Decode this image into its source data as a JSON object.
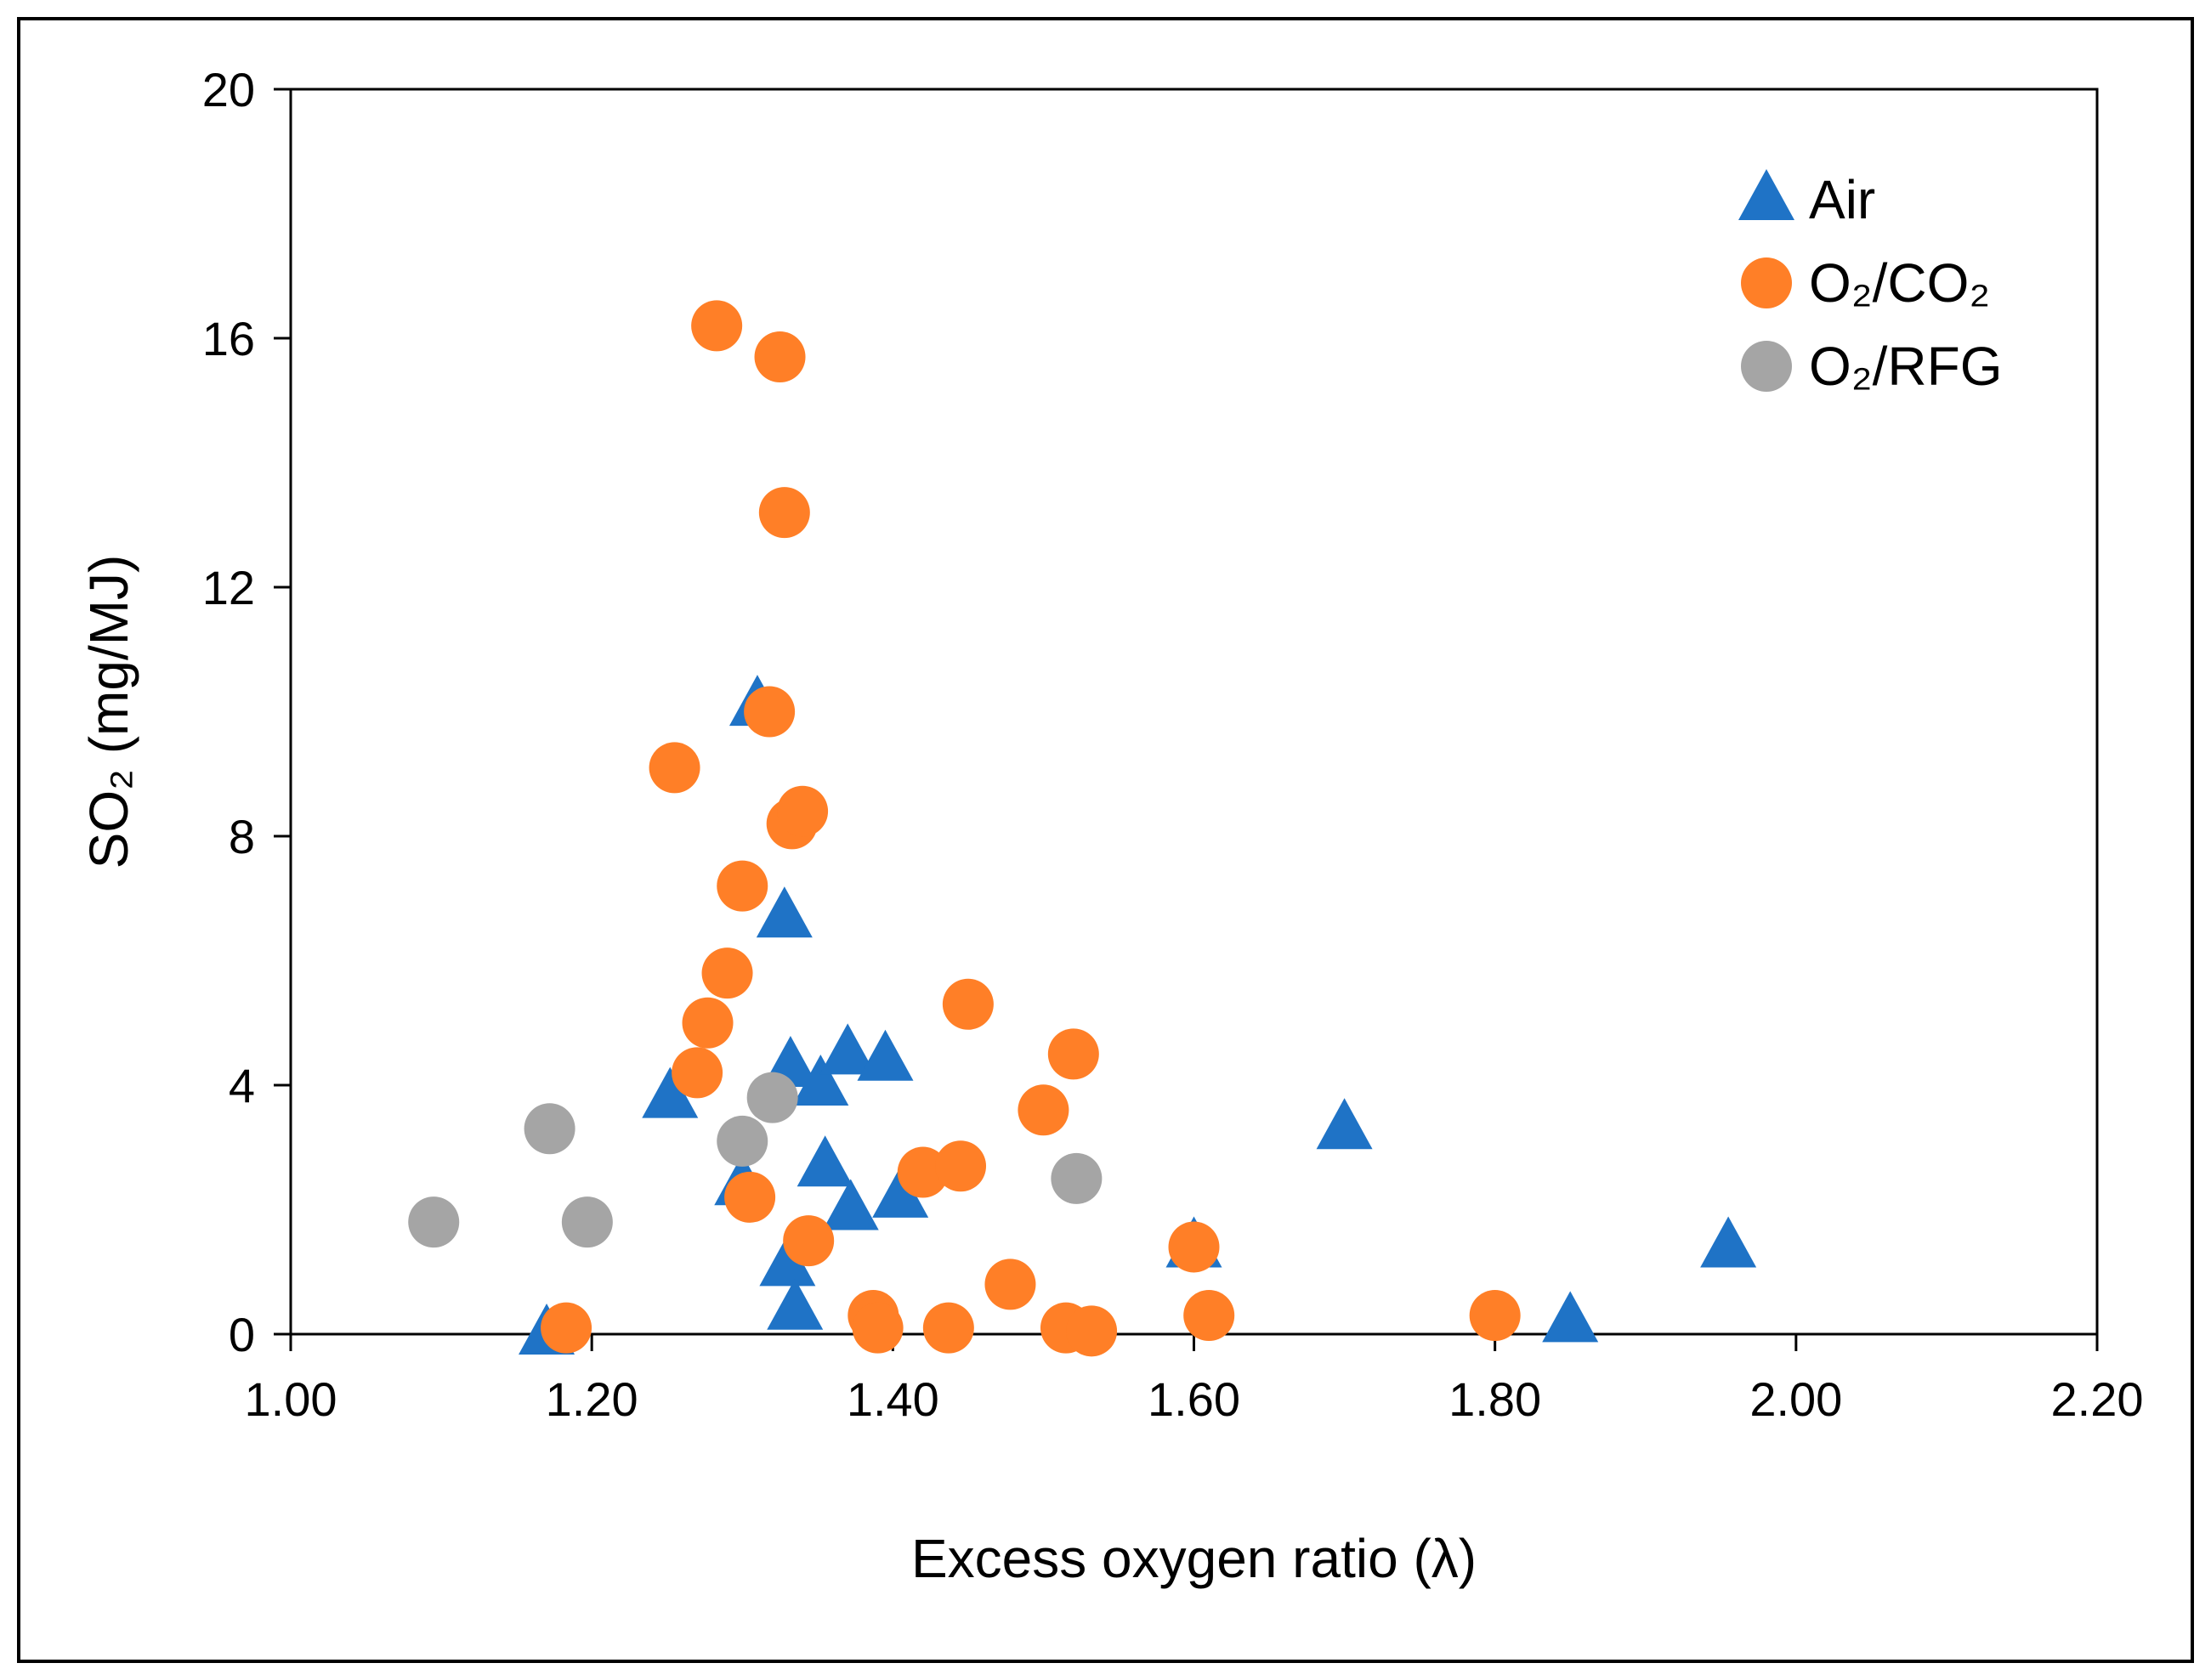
{
  "chart_data": {
    "type": "scatter",
    "title": "",
    "xlabel": "Excess oxygen ratio (λ)",
    "ylabel": "SO₂ (mg/MJ)",
    "xlim": [
      1.0,
      2.2
    ],
    "ylim": [
      0,
      20
    ],
    "x_ticks": [
      1.0,
      1.2,
      1.4,
      1.6,
      1.8,
      2.0,
      2.2
    ],
    "x_tick_labels": [
      "1.00",
      "1.20",
      "1.40",
      "1.60",
      "1.80",
      "2.00",
      "2.20"
    ],
    "y_ticks": [
      0,
      4,
      8,
      12,
      16,
      20
    ],
    "y_tick_labels": [
      "0",
      "4",
      "8",
      "12",
      "16",
      "20"
    ],
    "grid": false,
    "legend_position": "top-right",
    "series": [
      {
        "name": "Air",
        "marker": "triangle",
        "color": "#1f73c6",
        "points": [
          [
            1.17,
            0.0
          ],
          [
            1.252,
            3.8
          ],
          [
            1.3,
            2.4
          ],
          [
            1.31,
            10.1
          ],
          [
            1.328,
            6.7
          ],
          [
            1.332,
            4.3
          ],
          [
            1.33,
            1.1
          ],
          [
            1.335,
            0.4
          ],
          [
            1.352,
            4.0
          ],
          [
            1.355,
            2.7
          ],
          [
            1.37,
            4.5
          ],
          [
            1.372,
            2.0
          ],
          [
            1.395,
            4.4
          ],
          [
            1.405,
            2.2
          ],
          [
            1.6,
            1.4
          ],
          [
            1.7,
            3.3
          ],
          [
            1.85,
            0.2
          ],
          [
            1.955,
            1.4
          ]
        ]
      },
      {
        "name": "O₂/CO₂",
        "marker": "circle",
        "color": "#ff7f27",
        "points": [
          [
            1.183,
            0.1
          ],
          [
            1.255,
            9.1
          ],
          [
            1.27,
            4.2
          ],
          [
            1.277,
            5.0
          ],
          [
            1.283,
            16.2
          ],
          [
            1.29,
            5.8
          ],
          [
            1.3,
            7.2
          ],
          [
            1.305,
            2.2
          ],
          [
            1.318,
            10.0
          ],
          [
            1.325,
            15.7
          ],
          [
            1.328,
            13.2
          ],
          [
            1.333,
            8.2
          ],
          [
            1.34,
            8.4
          ],
          [
            1.344,
            1.5
          ],
          [
            1.387,
            0.3
          ],
          [
            1.39,
            0.1
          ],
          [
            1.42,
            2.6
          ],
          [
            1.437,
            0.1
          ],
          [
            1.445,
            2.7
          ],
          [
            1.45,
            5.3
          ],
          [
            1.478,
            0.8
          ],
          [
            1.5,
            3.6
          ],
          [
            1.515,
            0.1
          ],
          [
            1.52,
            4.5
          ],
          [
            1.532,
            0.05
          ],
          [
            1.6,
            1.4
          ],
          [
            1.61,
            0.3
          ],
          [
            1.8,
            0.3
          ]
        ]
      },
      {
        "name": "O₂/RFG",
        "marker": "circle",
        "color": "#a5a5a5",
        "points": [
          [
            1.095,
            1.8
          ],
          [
            1.172,
            3.3
          ],
          [
            1.197,
            1.8
          ],
          [
            1.3,
            3.1
          ],
          [
            1.32,
            3.8
          ],
          [
            1.522,
            2.5
          ]
        ]
      }
    ]
  }
}
